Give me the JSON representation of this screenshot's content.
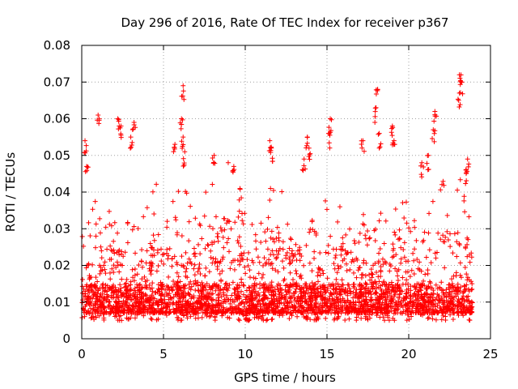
{
  "chart_data": {
    "type": "scatter",
    "title": "Day 296 of 2016, Rate Of TEC Index for receiver p367",
    "xlabel": "GPS time / hours",
    "ylabel": "ROTI / TECUs",
    "xlim": [
      0,
      25
    ],
    "ylim": [
      0,
      0.08
    ],
    "xticks": [
      0,
      5,
      10,
      15,
      20,
      25
    ],
    "xtick_labels": [
      "0",
      "5",
      "10",
      "15",
      "20",
      "25"
    ],
    "yticks": [
      0,
      0.01,
      0.02,
      0.03,
      0.04,
      0.05,
      0.06,
      0.07,
      0.08
    ],
    "ytick_labels": [
      "0",
      "0.01",
      "0.02",
      "0.03",
      "0.04",
      "0.05",
      "0.06",
      "0.07",
      "0.08"
    ],
    "grid": true,
    "marker": "plus",
    "color": "#ff0000",
    "data_range": {
      "x_min": 0.0,
      "x_max": 23.9,
      "y_min": 0.003,
      "y_max": 0.073
    },
    "cluster_band": {
      "y_low": 0.005,
      "y_high": 0.03
    },
    "outliers": [
      {
        "x": 1.0,
        "y": 0.061
      },
      {
        "x": 2.2,
        "y": 0.06
      },
      {
        "x": 2.4,
        "y": 0.058
      },
      {
        "x": 3.2,
        "y": 0.059
      },
      {
        "x": 3.0,
        "y": 0.055
      },
      {
        "x": 0.2,
        "y": 0.054
      },
      {
        "x": 6.2,
        "y": 0.069
      },
      {
        "x": 6.1,
        "y": 0.06
      },
      {
        "x": 6.2,
        "y": 0.055
      },
      {
        "x": 5.7,
        "y": 0.053
      },
      {
        "x": 6.3,
        "y": 0.051
      },
      {
        "x": 8.1,
        "y": 0.05
      },
      {
        "x": 9.3,
        "y": 0.047
      },
      {
        "x": 11.5,
        "y": 0.054
      },
      {
        "x": 11.6,
        "y": 0.052
      },
      {
        "x": 13.8,
        "y": 0.055
      },
      {
        "x": 13.9,
        "y": 0.052
      },
      {
        "x": 15.2,
        "y": 0.06
      },
      {
        "x": 15.1,
        "y": 0.056
      },
      {
        "x": 17.2,
        "y": 0.054
      },
      {
        "x": 18.1,
        "y": 0.068
      },
      {
        "x": 18.0,
        "y": 0.063
      },
      {
        "x": 18.2,
        "y": 0.056
      },
      {
        "x": 19.0,
        "y": 0.058
      },
      {
        "x": 19.1,
        "y": 0.054
      },
      {
        "x": 21.6,
        "y": 0.062
      },
      {
        "x": 21.5,
        "y": 0.057
      },
      {
        "x": 21.2,
        "y": 0.05
      },
      {
        "x": 23.1,
        "y": 0.072
      },
      {
        "x": 23.2,
        "y": 0.07
      },
      {
        "x": 23.1,
        "y": 0.067
      },
      {
        "x": 23.6,
        "y": 0.049
      },
      {
        "x": 23.5,
        "y": 0.046
      },
      {
        "x": 20.8,
        "y": 0.048
      },
      {
        "x": 0.3,
        "y": 0.047
      },
      {
        "x": 13.6,
        "y": 0.049
      }
    ]
  }
}
